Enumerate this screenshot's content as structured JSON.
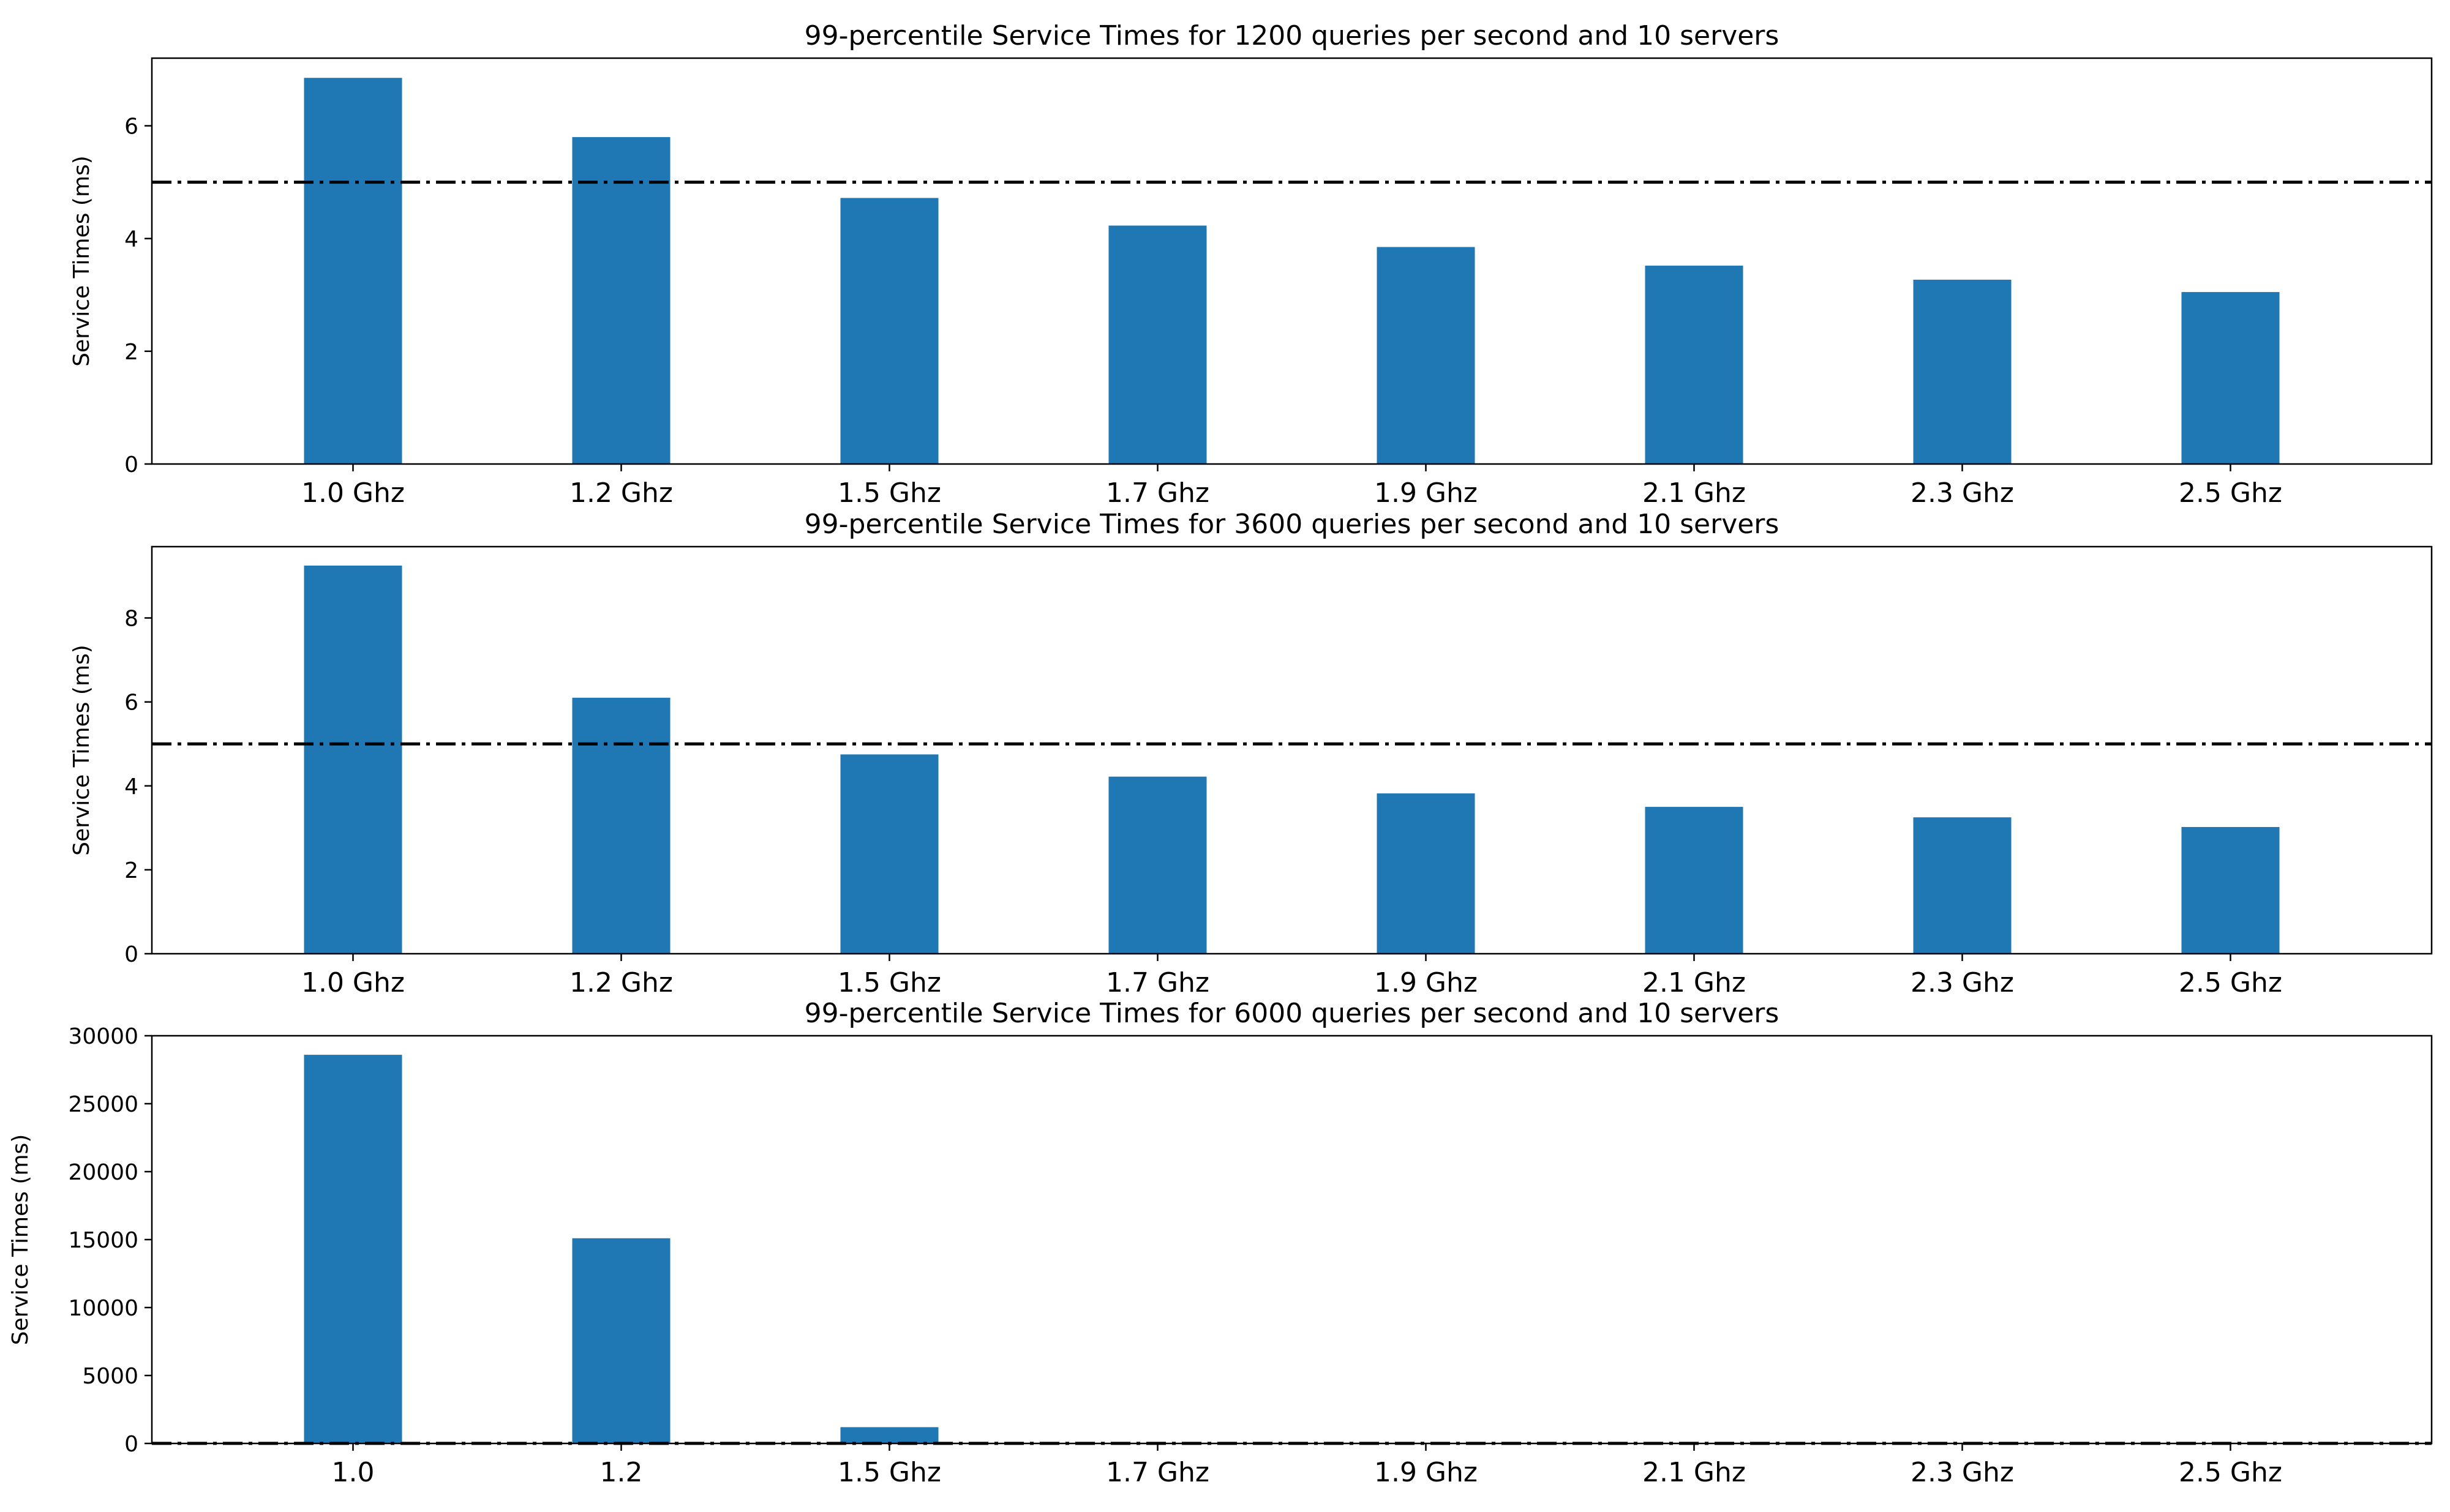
{
  "chart_data": [
    {
      "type": "bar",
      "title": "99-percentile Service Times for 1200 queries per second and 10 servers",
      "ylabel": "Service Times (ms)",
      "xlabel": "",
      "categories": [
        "1.0 Ghz",
        "1.2 Ghz",
        "1.5 Ghz",
        "1.7 Ghz",
        "1.9 Ghz",
        "2.1 Ghz",
        "2.3 Ghz",
        "2.5 Ghz"
      ],
      "values": [
        6.85,
        5.8,
        4.72,
        4.23,
        3.85,
        3.52,
        3.27,
        3.05
      ],
      "ylim": [
        0,
        7.2
      ],
      "yticks": [
        0,
        2,
        4,
        6
      ],
      "reference_line": {
        "value": 5,
        "style": "dash-dot",
        "color": "#000000"
      },
      "bar_color": "#1f77b4"
    },
    {
      "type": "bar",
      "title": "99-percentile Service Times for 3600 queries per second and 10 servers",
      "ylabel": "Service Times (ms)",
      "xlabel": "",
      "categories": [
        "1.0 Ghz",
        "1.2 Ghz",
        "1.5 Ghz",
        "1.7 Ghz",
        "1.9 Ghz",
        "2.1 Ghz",
        "2.3 Ghz",
        "2.5 Ghz"
      ],
      "values": [
        9.25,
        6.1,
        4.75,
        4.22,
        3.82,
        3.5,
        3.25,
        3.02
      ],
      "ylim": [
        0,
        9.7
      ],
      "yticks": [
        0,
        2,
        4,
        6,
        8
      ],
      "reference_line": {
        "value": 5,
        "style": "dash-dot",
        "color": "#000000"
      },
      "bar_color": "#1f77b4"
    },
    {
      "type": "bar",
      "title": "99-percentile Service Times for 6000 queries per second and 10 servers",
      "ylabel": "Service Times (ms)",
      "xlabel": "",
      "categories": [
        "1.0",
        "1.2",
        "1.5 Ghz",
        "1.7 Ghz",
        "1.9 Ghz",
        "2.1 Ghz",
        "2.3 Ghz",
        "2.5 Ghz"
      ],
      "values": [
        28600,
        15100,
        1200,
        0,
        0,
        0,
        0,
        0
      ],
      "ylim": [
        0,
        30000
      ],
      "yticks": [
        0,
        5000,
        10000,
        15000,
        20000,
        25000,
        30000
      ],
      "reference_line": {
        "value": 5,
        "style": "dash-dot",
        "color": "#000000"
      },
      "bar_color": "#1f77b4"
    }
  ]
}
